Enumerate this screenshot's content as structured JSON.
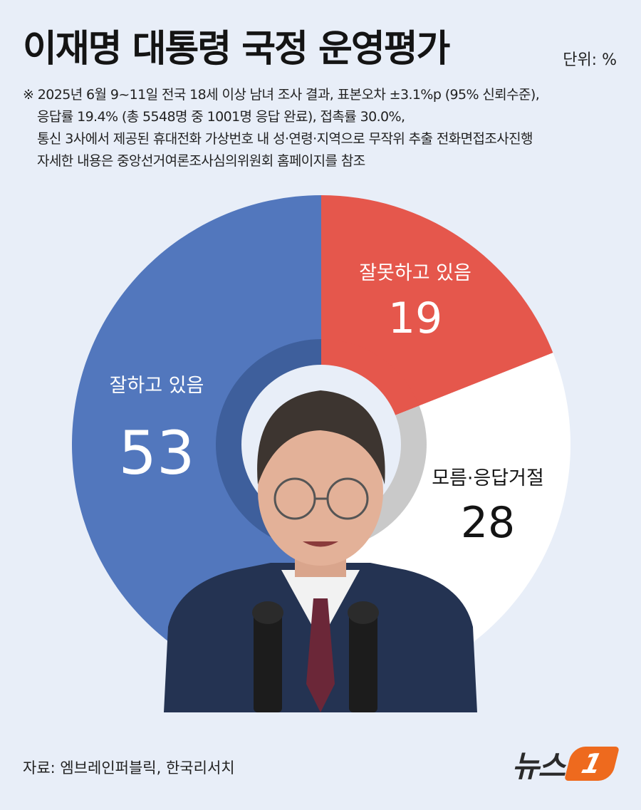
{
  "title": "이재명 대통령 국정 운영평가",
  "unit": "단위: %",
  "notes": [
    "※ 2025년 6월 9~11일 전국 18세 이상 남녀 조사 결과, 표본오차 ±3.1%p (95% 신뢰수준),",
    "응답률 19.4% (총 5548명 중 1001명 응답 완료), 접촉률 30.0%,",
    "통신 3사에서 제공된 휴대전화 가상번호 내 성·연령·지역으로 무작위 추출 전화면접조사진행",
    "자세한 내용은 중앙선거여론조사심의위원회 홈페이지를 참조"
  ],
  "source": "자료: 엠브레인퍼블릭, 한국리서치",
  "logo": {
    "text": "뉴스",
    "mark": "1"
  },
  "colors": {
    "approve": "#5277bd",
    "disapprove": "#e5574c",
    "unknown": "#ffffff",
    "inner_ring": "#3e5f9c",
    "inner_ring_gray": "#c9c9c9",
    "background": "#e8eef8"
  },
  "chart_data": {
    "type": "pie",
    "categories": [
      "잘하고 있음",
      "잘못하고 있음",
      "모름·응답거절"
    ],
    "values": [
      53,
      19,
      28
    ],
    "value_labels": [
      "53",
      "19",
      "28"
    ],
    "start": "top",
    "direction": "clockwise-from-disapprove"
  },
  "photo": {
    "description_icon": "person-photo"
  }
}
